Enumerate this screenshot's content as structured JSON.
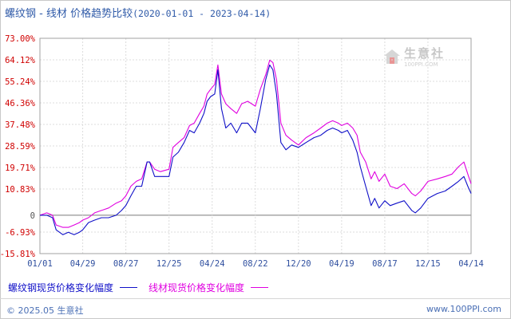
{
  "title": {
    "main": "螺纹钢 - 线材 价格趋势比较",
    "range": "(2020-01-01 - 2023-04-14)"
  },
  "colors": {
    "series1": "#1010c8",
    "series2": "#e000e0",
    "axis_text": "#2f4f9f",
    "tick_text_negative": "#d00000",
    "grid": "#dcdcdc",
    "title": "#2f5aa8"
  },
  "watermark": {
    "name": "生意社",
    "url": "100PPI.COM"
  },
  "footer": {
    "copyright": "© 2025.05 生意社",
    "site": "www.100PPI.com"
  },
  "chart_data": {
    "type": "line",
    "title": "螺纹钢 - 线材 价格趋势比较",
    "subtitle": "(2020-01-01 - 2023-04-14)",
    "xlabel": "",
    "ylabel": "",
    "x_ticks": [
      "01/01",
      "04/29",
      "08/27",
      "12/25",
      "04/24",
      "08/22",
      "12/20",
      "04/19",
      "08/17",
      "12/15",
      "04/14"
    ],
    "x_tick_dates": [
      "2020-01-01",
      "2020-04-29",
      "2020-08-27",
      "2020-12-25",
      "2021-04-24",
      "2021-08-22",
      "2021-12-20",
      "2022-04-19",
      "2022-08-17",
      "2022-12-15",
      "2023-04-14"
    ],
    "y_ticks": [
      "73.00%",
      "64.12%",
      "55.24%",
      "46.36%",
      "37.48%",
      "28.59%",
      "19.71%",
      "10.83%",
      "0",
      "-6.93%",
      "-15.81%"
    ],
    "y_tick_values": [
      73.0,
      64.12,
      55.24,
      46.36,
      37.48,
      28.59,
      19.71,
      10.83,
      0,
      -6.93,
      -15.81
    ],
    "ylim": [
      -15.81,
      73.0
    ],
    "grid": true,
    "legend_position": "bottom-left",
    "series": [
      {
        "name": "螺纹钢现货价格变化幅度",
        "color": "#1010c8",
        "points": [
          [
            "2020-01-01",
            0
          ],
          [
            "2020-01-20",
            0
          ],
          [
            "2020-02-05",
            -1
          ],
          [
            "2020-02-15",
            -6
          ],
          [
            "2020-03-05",
            -8
          ],
          [
            "2020-03-20",
            -7
          ],
          [
            "2020-04-05",
            -8
          ],
          [
            "2020-04-20",
            -7
          ],
          [
            "2020-04-29",
            -6
          ],
          [
            "2020-05-15",
            -3
          ],
          [
            "2020-06-01",
            -2
          ],
          [
            "2020-06-20",
            -1
          ],
          [
            "2020-07-10",
            -1
          ],
          [
            "2020-07-31",
            0
          ],
          [
            "2020-08-15",
            2
          ],
          [
            "2020-08-27",
            4
          ],
          [
            "2020-09-10",
            8
          ],
          [
            "2020-09-25",
            12
          ],
          [
            "2020-10-10",
            12
          ],
          [
            "2020-10-25",
            22
          ],
          [
            "2020-11-01",
            22
          ],
          [
            "2020-11-15",
            16
          ],
          [
            "2020-12-01",
            16
          ],
          [
            "2020-12-25",
            16
          ],
          [
            "2021-01-05",
            24
          ],
          [
            "2021-01-20",
            26
          ],
          [
            "2021-02-05",
            30
          ],
          [
            "2021-02-20",
            35
          ],
          [
            "2021-03-05",
            34
          ],
          [
            "2021-03-20",
            38
          ],
          [
            "2021-04-01",
            42
          ],
          [
            "2021-04-10",
            47
          ],
          [
            "2021-04-20",
            49
          ],
          [
            "2021-05-01",
            50
          ],
          [
            "2021-05-10",
            60
          ],
          [
            "2021-05-20",
            44
          ],
          [
            "2021-06-01",
            36
          ],
          [
            "2021-06-15",
            38
          ],
          [
            "2021-07-01",
            34
          ],
          [
            "2021-07-15",
            38
          ],
          [
            "2021-08-01",
            38
          ],
          [
            "2021-08-22",
            34
          ],
          [
            "2021-09-05",
            44
          ],
          [
            "2021-09-20",
            56
          ],
          [
            "2021-10-01",
            62
          ],
          [
            "2021-10-10",
            60
          ],
          [
            "2021-10-20",
            50
          ],
          [
            "2021-11-01",
            30
          ],
          [
            "2021-11-15",
            27
          ],
          [
            "2021-12-01",
            29
          ],
          [
            "2021-12-20",
            28
          ],
          [
            "2022-01-10",
            30
          ],
          [
            "2022-02-01",
            32
          ],
          [
            "2022-02-20",
            33
          ],
          [
            "2022-03-10",
            35
          ],
          [
            "2022-03-25",
            36
          ],
          [
            "2022-04-10",
            35
          ],
          [
            "2022-04-19",
            34
          ],
          [
            "2022-05-05",
            35
          ],
          [
            "2022-05-20",
            31
          ],
          [
            "2022-06-01",
            26
          ],
          [
            "2022-06-10",
            20
          ],
          [
            "2022-06-25",
            12
          ],
          [
            "2022-07-10",
            4
          ],
          [
            "2022-07-20",
            7
          ],
          [
            "2022-08-01",
            3
          ],
          [
            "2022-08-17",
            6
          ],
          [
            "2022-09-01",
            4
          ],
          [
            "2022-09-20",
            5
          ],
          [
            "2022-10-10",
            6
          ],
          [
            "2022-10-31",
            2
          ],
          [
            "2022-11-10",
            1
          ],
          [
            "2022-11-25",
            3
          ],
          [
            "2022-12-15",
            7
          ],
          [
            "2023-01-10",
            9
          ],
          [
            "2023-02-01",
            10
          ],
          [
            "2023-02-20",
            12
          ],
          [
            "2023-03-10",
            14
          ],
          [
            "2023-03-25",
            16
          ],
          [
            "2023-04-05",
            12
          ],
          [
            "2023-04-14",
            9
          ]
        ]
      },
      {
        "name": "线材现货价格变化幅度",
        "color": "#e000e0",
        "points": [
          [
            "2020-01-01",
            0
          ],
          [
            "2020-01-20",
            1
          ],
          [
            "2020-02-05",
            0
          ],
          [
            "2020-02-15",
            -4
          ],
          [
            "2020-03-05",
            -5
          ],
          [
            "2020-03-20",
            -5
          ],
          [
            "2020-04-05",
            -4
          ],
          [
            "2020-04-20",
            -3
          ],
          [
            "2020-04-29",
            -2
          ],
          [
            "2020-05-15",
            -1
          ],
          [
            "2020-06-01",
            1
          ],
          [
            "2020-06-20",
            2
          ],
          [
            "2020-07-10",
            3
          ],
          [
            "2020-07-31",
            5
          ],
          [
            "2020-08-15",
            6
          ],
          [
            "2020-08-27",
            8
          ],
          [
            "2020-09-10",
            12
          ],
          [
            "2020-09-25",
            14
          ],
          [
            "2020-10-10",
            15
          ],
          [
            "2020-10-25",
            22
          ],
          [
            "2020-11-01",
            22
          ],
          [
            "2020-11-15",
            19
          ],
          [
            "2020-12-01",
            18
          ],
          [
            "2020-12-25",
            19
          ],
          [
            "2021-01-05",
            28
          ],
          [
            "2021-01-20",
            30
          ],
          [
            "2021-02-05",
            32
          ],
          [
            "2021-02-20",
            37
          ],
          [
            "2021-03-05",
            38
          ],
          [
            "2021-03-20",
            42
          ],
          [
            "2021-04-01",
            45
          ],
          [
            "2021-04-10",
            50
          ],
          [
            "2021-04-20",
            52
          ],
          [
            "2021-05-01",
            54
          ],
          [
            "2021-05-10",
            62
          ],
          [
            "2021-05-20",
            50
          ],
          [
            "2021-06-01",
            46
          ],
          [
            "2021-06-15",
            44
          ],
          [
            "2021-07-01",
            42
          ],
          [
            "2021-07-15",
            46
          ],
          [
            "2021-08-01",
            47
          ],
          [
            "2021-08-22",
            45
          ],
          [
            "2021-09-05",
            52
          ],
          [
            "2021-09-20",
            58
          ],
          [
            "2021-10-01",
            64
          ],
          [
            "2021-10-10",
            63
          ],
          [
            "2021-10-20",
            56
          ],
          [
            "2021-11-01",
            38
          ],
          [
            "2021-11-15",
            33
          ],
          [
            "2021-12-01",
            31
          ],
          [
            "2021-12-20",
            29
          ],
          [
            "2022-01-10",
            32
          ],
          [
            "2022-02-01",
            34
          ],
          [
            "2022-02-20",
            36
          ],
          [
            "2022-03-10",
            38
          ],
          [
            "2022-03-25",
            39
          ],
          [
            "2022-04-10",
            38
          ],
          [
            "2022-04-19",
            37
          ],
          [
            "2022-05-05",
            38
          ],
          [
            "2022-05-20",
            36
          ],
          [
            "2022-06-01",
            33
          ],
          [
            "2022-06-10",
            26
          ],
          [
            "2022-06-25",
            22
          ],
          [
            "2022-07-10",
            15
          ],
          [
            "2022-07-20",
            18
          ],
          [
            "2022-08-01",
            14
          ],
          [
            "2022-08-17",
            17
          ],
          [
            "2022-09-01",
            12
          ],
          [
            "2022-09-20",
            11
          ],
          [
            "2022-10-10",
            13
          ],
          [
            "2022-10-31",
            9
          ],
          [
            "2022-11-10",
            8
          ],
          [
            "2022-11-25",
            10
          ],
          [
            "2022-12-15",
            14
          ],
          [
            "2023-01-10",
            15
          ],
          [
            "2023-02-01",
            16
          ],
          [
            "2023-02-20",
            17
          ],
          [
            "2023-03-10",
            20
          ],
          [
            "2023-03-25",
            22
          ],
          [
            "2023-04-05",
            17
          ],
          [
            "2023-04-14",
            13
          ]
        ]
      }
    ]
  }
}
